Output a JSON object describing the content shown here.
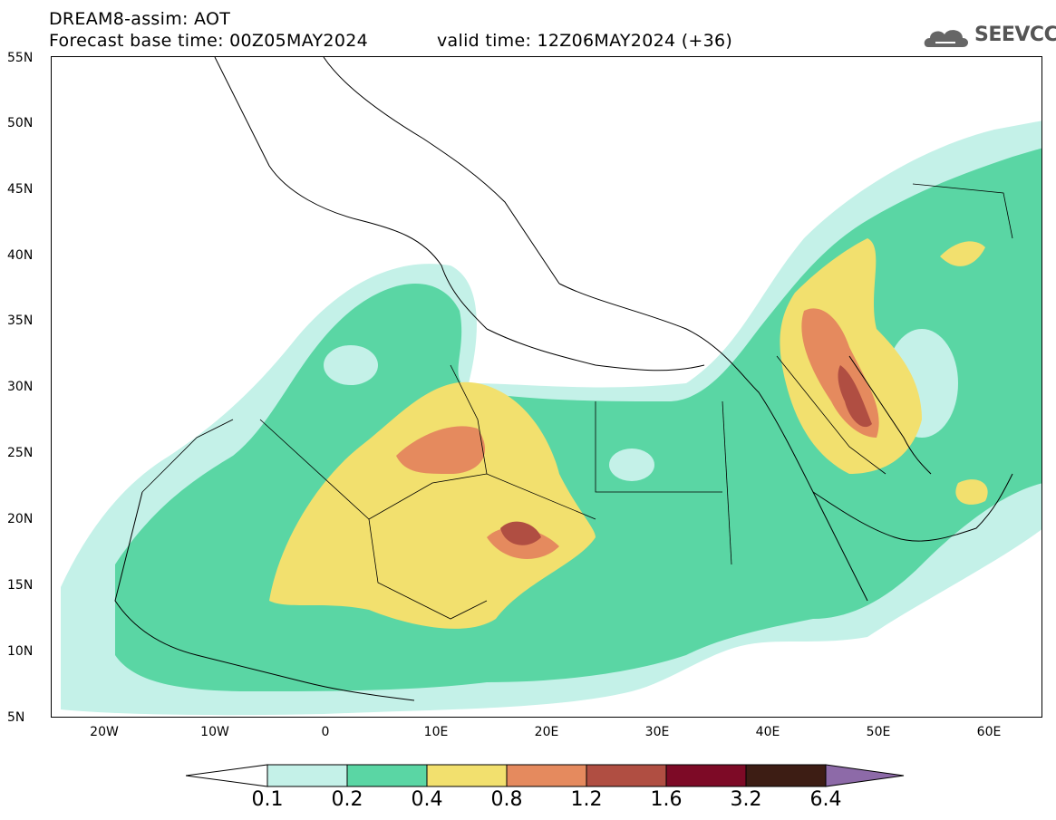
{
  "header": {
    "model_title": "DREAM8-assim: AOT",
    "base_time": "Forecast base time: 00Z05MAY2024",
    "valid_time": "valid time: 12Z06MAY2024 (+36)",
    "logo_text": "SEEVCCC",
    "logo_icon": "cloud-icon"
  },
  "map": {
    "lat_labels": [
      "55N",
      "50N",
      "45N",
      "40N",
      "35N",
      "30N",
      "25N",
      "20N",
      "15N",
      "10N",
      "5N"
    ],
    "lon_labels": [
      "20W",
      "10W",
      "0",
      "10E",
      "20E",
      "30E",
      "40E",
      "50E",
      "60E"
    ]
  },
  "colorbar": {
    "levels": [
      "0.1",
      "0.2",
      "0.4",
      "0.8",
      "1.2",
      "1.6",
      "3.2",
      "6.4"
    ],
    "colors": [
      "#ffffff",
      "#c4f1e8",
      "#5ad6a4",
      "#f2e06e",
      "#e58a5e",
      "#b04e42",
      "#7d0a26",
      "#3d1d14",
      "#8d6aa8"
    ]
  }
}
